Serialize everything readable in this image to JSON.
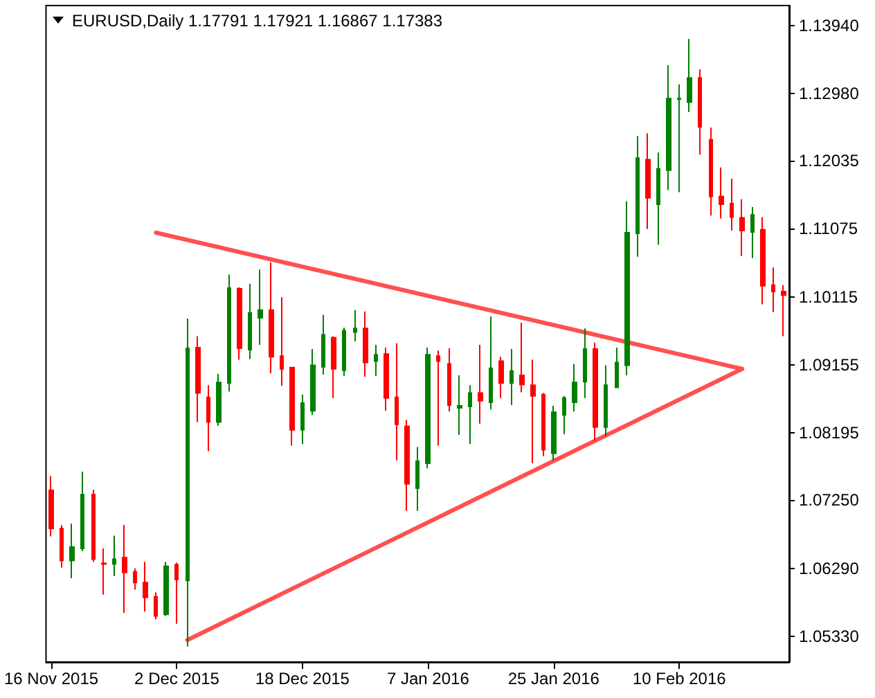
{
  "chart_data": {
    "type": "candlestick",
    "title": "EURUSD,Daily 1.17791 1.17921 1.16867 1.17383",
    "categories": [
      "16 Nov 2015",
      null,
      null,
      null,
      null,
      null,
      null,
      null,
      null,
      null,
      null,
      null,
      "2 Dec 2015",
      null,
      null,
      null,
      null,
      null,
      null,
      null,
      null,
      null,
      null,
      null,
      "18 Dec 2015",
      null,
      null,
      null,
      null,
      null,
      null,
      null,
      null,
      null,
      null,
      null,
      "7 Jan 2016",
      null,
      null,
      null,
      null,
      null,
      null,
      null,
      null,
      null,
      null,
      null,
      "25 Jan 2016",
      null,
      null,
      null,
      null,
      null,
      null,
      null,
      null,
      null,
      null,
      null,
      "10 Feb 2016",
      null,
      null,
      null,
      null,
      null,
      null,
      null,
      null,
      null,
      null
    ],
    "ohlc": [
      [
        1.0739,
        1.0759,
        1.0674,
        1.0685
      ],
      [
        1.0685,
        1.069,
        1.063,
        1.064
      ],
      [
        1.064,
        1.0692,
        1.0615,
        1.0659
      ],
      [
        1.0657,
        1.0765,
        1.0653,
        1.0733
      ],
      [
        1.0733,
        1.074,
        1.0638,
        1.0642
      ],
      [
        1.0636,
        1.0657,
        1.0592,
        1.0635
      ],
      [
        1.0635,
        1.0675,
        1.0618,
        1.0642
      ],
      [
        1.0644,
        1.069,
        1.0566,
        1.0623
      ],
      [
        1.0624,
        1.0629,
        1.0599,
        1.0609
      ],
      [
        1.0609,
        1.0638,
        1.0568,
        1.0588
      ],
      [
        1.0589,
        1.0595,
        1.0557,
        1.0562
      ],
      [
        1.0564,
        1.0638,
        1.0562,
        1.0632
      ],
      [
        1.0634,
        1.0637,
        1.0551,
        1.0613
      ],
      [
        1.0612,
        1.0981,
        1.0519,
        1.0939
      ],
      [
        1.094,
        1.0956,
        1.0835,
        1.0876
      ],
      [
        1.087,
        1.0887,
        1.0794,
        1.0835
      ],
      [
        1.0835,
        1.0903,
        1.083,
        1.0891
      ],
      [
        1.089,
        1.1043,
        1.0878,
        1.1024
      ],
      [
        1.1023,
        1.1025,
        1.0923,
        1.0939
      ],
      [
        1.0937,
        1.103,
        1.0924,
        1.0989
      ],
      [
        1.0982,
        1.105,
        1.0944,
        1.0993
      ],
      [
        1.0993,
        1.106,
        1.0904,
        1.0927
      ],
      [
        1.0928,
        1.1011,
        1.0886,
        1.091
      ],
      [
        1.0912,
        1.0913,
        1.0802,
        1.0824
      ],
      [
        1.0824,
        1.0874,
        1.0804,
        1.0862
      ],
      [
        1.0851,
        1.0938,
        1.0845,
        1.0915
      ],
      [
        1.0913,
        1.0986,
        1.0902,
        1.0958
      ],
      [
        1.0954,
        1.0956,
        1.0869,
        1.091
      ],
      [
        1.0908,
        1.0968,
        1.09,
        1.0964
      ],
      [
        1.0962,
        1.0993,
        1.0949,
        1.0967
      ],
      [
        1.0967,
        1.0991,
        1.0899,
        1.0919
      ],
      [
        1.0921,
        1.0944,
        1.09,
        1.093
      ],
      [
        1.0931,
        1.094,
        1.0851,
        1.0869
      ],
      [
        1.087,
        1.0946,
        1.0781,
        1.0832
      ],
      [
        1.0829,
        1.0838,
        1.071,
        1.0748
      ],
      [
        1.0742,
        1.08,
        1.071,
        1.078
      ],
      [
        1.0777,
        1.094,
        1.077,
        1.093
      ],
      [
        1.0928,
        1.0936,
        1.0802,
        1.0921
      ],
      [
        1.0917,
        1.0939,
        1.085,
        1.0859
      ],
      [
        1.0855,
        1.0901,
        1.0817,
        1.0858
      ],
      [
        1.0857,
        1.0887,
        1.0804,
        1.0876
      ],
      [
        1.0876,
        1.0944,
        1.0833,
        1.0865
      ],
      [
        1.0863,
        1.0984,
        1.0853,
        1.0911
      ],
      [
        1.0921,
        1.0927,
        1.0869,
        1.089
      ],
      [
        1.089,
        1.0938,
        1.0859,
        1.0907
      ],
      [
        1.0901,
        1.0975,
        1.0877,
        1.0888
      ],
      [
        1.0887,
        1.0923,
        1.0777,
        1.0872
      ],
      [
        1.0874,
        1.0876,
        1.0787,
        1.0796
      ],
      [
        1.0791,
        1.0858,
        1.0781,
        1.0849
      ],
      [
        1.0845,
        1.0872,
        1.0818,
        1.0869
      ],
      [
        1.0863,
        1.0917,
        1.085,
        1.0891
      ],
      [
        1.0892,
        1.0967,
        1.0869,
        1.0938
      ],
      [
        1.0938,
        1.0947,
        1.0809,
        1.0828
      ],
      [
        1.0828,
        1.0915,
        1.0815,
        1.0887
      ],
      [
        1.0884,
        1.094,
        1.0884,
        1.0919
      ],
      [
        1.0915,
        1.1146,
        1.0901,
        1.1102
      ],
      [
        1.1101,
        1.1238,
        1.1068,
        1.1207
      ],
      [
        1.1205,
        1.1242,
        1.1107,
        1.1151
      ],
      [
        1.1142,
        1.1215,
        1.1085,
        1.1192
      ],
      [
        1.119,
        1.1338,
        1.1162,
        1.1291
      ],
      [
        1.129,
        1.1311,
        1.1159,
        1.1291
      ],
      [
        1.1286,
        1.1375,
        1.1272,
        1.132
      ],
      [
        1.132,
        1.1332,
        1.1212,
        1.1251
      ],
      [
        1.1233,
        1.125,
        1.1126,
        1.1153
      ],
      [
        1.1153,
        1.1194,
        1.1122,
        1.1142
      ],
      [
        1.1143,
        1.1178,
        1.1105,
        1.1124
      ],
      [
        1.1123,
        1.1149,
        1.1069,
        1.1105
      ],
      [
        1.1103,
        1.1138,
        1.1066,
        1.1127
      ],
      [
        1.1106,
        1.1124,
        1.1001,
        1.1027
      ],
      [
        1.1028,
        1.1053,
        1.099,
        1.1019
      ],
      [
        1.1019,
        1.1028,
        1.0956,
        1.1014
      ]
    ],
    "colors": [
      "#ff0000",
      "#ff0000",
      "#008000",
      "#008000",
      "#ff0000",
      "#ff0000",
      "#008000",
      "#ff0000",
      "#ff0000",
      "#ff0000",
      "#ff0000",
      "#008000",
      "#ff0000",
      "#008000",
      "#ff0000",
      "#ff0000",
      "#008000",
      "#008000",
      "#ff0000",
      "#008000",
      "#008000",
      "#ff0000",
      "#ff0000",
      "#ff0000",
      "#008000",
      "#008000",
      "#008000",
      "#ff0000",
      "#008000",
      "#008000",
      "#ff0000",
      "#008000",
      "#ff0000",
      "#ff0000",
      "#ff0000",
      "#008000",
      "#008000",
      "#ff0000",
      "#ff0000",
      "#008000",
      "#008000",
      "#ff0000",
      "#008000",
      "#ff0000",
      "#008000",
      "#ff0000",
      "#ff0000",
      "#ff0000",
      "#008000",
      "#008000",
      "#008000",
      "#008000",
      "#ff0000",
      "#008000",
      "#008000",
      "#008000",
      "#008000",
      "#ff0000",
      "#008000",
      "#008000",
      "#008000",
      "#008000",
      "#ff0000",
      "#ff0000",
      "#ff0000",
      "#ff0000",
      "#ff0000",
      "#008000",
      "#ff0000",
      "#ff0000",
      "#ff0000"
    ],
    "series": [
      {
        "type": "line",
        "color": "#ff5050",
        "values": [
          null,
          null,
          null,
          null,
          null,
          null,
          null,
          null,
          null,
          null,
          1.1102,
          null,
          null,
          null,
          null,
          null,
          null,
          null,
          null,
          null,
          null,
          null,
          null,
          null,
          null,
          null,
          null,
          null,
          null,
          null,
          null,
          null,
          null,
          null,
          null,
          null,
          null,
          null,
          null,
          null,
          null,
          null,
          null,
          null,
          null,
          null,
          null,
          null,
          null,
          null,
          null,
          null,
          null,
          null,
          null,
          null,
          null,
          null,
          null,
          null,
          null,
          null,
          null,
          null,
          null,
          null,
          1.091,
          null,
          null,
          null,
          null
        ]
      },
      {
        "type": "line",
        "color": "#ff5050",
        "values": [
          null,
          null,
          null,
          null,
          null,
          null,
          null,
          null,
          null,
          null,
          null,
          null,
          null,
          1.0528,
          null,
          null,
          null,
          null,
          null,
          null,
          null,
          null,
          null,
          null,
          null,
          null,
          null,
          null,
          null,
          null,
          null,
          null,
          null,
          null,
          null,
          null,
          null,
          null,
          null,
          null,
          null,
          null,
          null,
          null,
          null,
          null,
          null,
          null,
          null,
          null,
          null,
          null,
          null,
          null,
          null,
          null,
          null,
          null,
          null,
          null,
          null,
          null,
          null,
          null,
          null,
          null,
          1.091,
          null,
          null,
          null,
          null
        ]
      }
    ],
    "ylim": [
      1.0497,
      1.1422
    ],
    "yticks": [
      {
        "value": 1.0533,
        "label": "1.05330"
      },
      {
        "value": 1.0629,
        "label": "1.06290"
      },
      {
        "value": 1.0725,
        "label": "1.07250"
      },
      1.08195,
      1.09155,
      1.10115,
      1.11075,
      1.12035,
      {
        "value": 1.1298,
        "label": "1.12980"
      },
      {
        "value": 1.1394,
        "label": "1.13940"
      }
    ],
    "marker": "none",
    "line_style": "solid"
  }
}
